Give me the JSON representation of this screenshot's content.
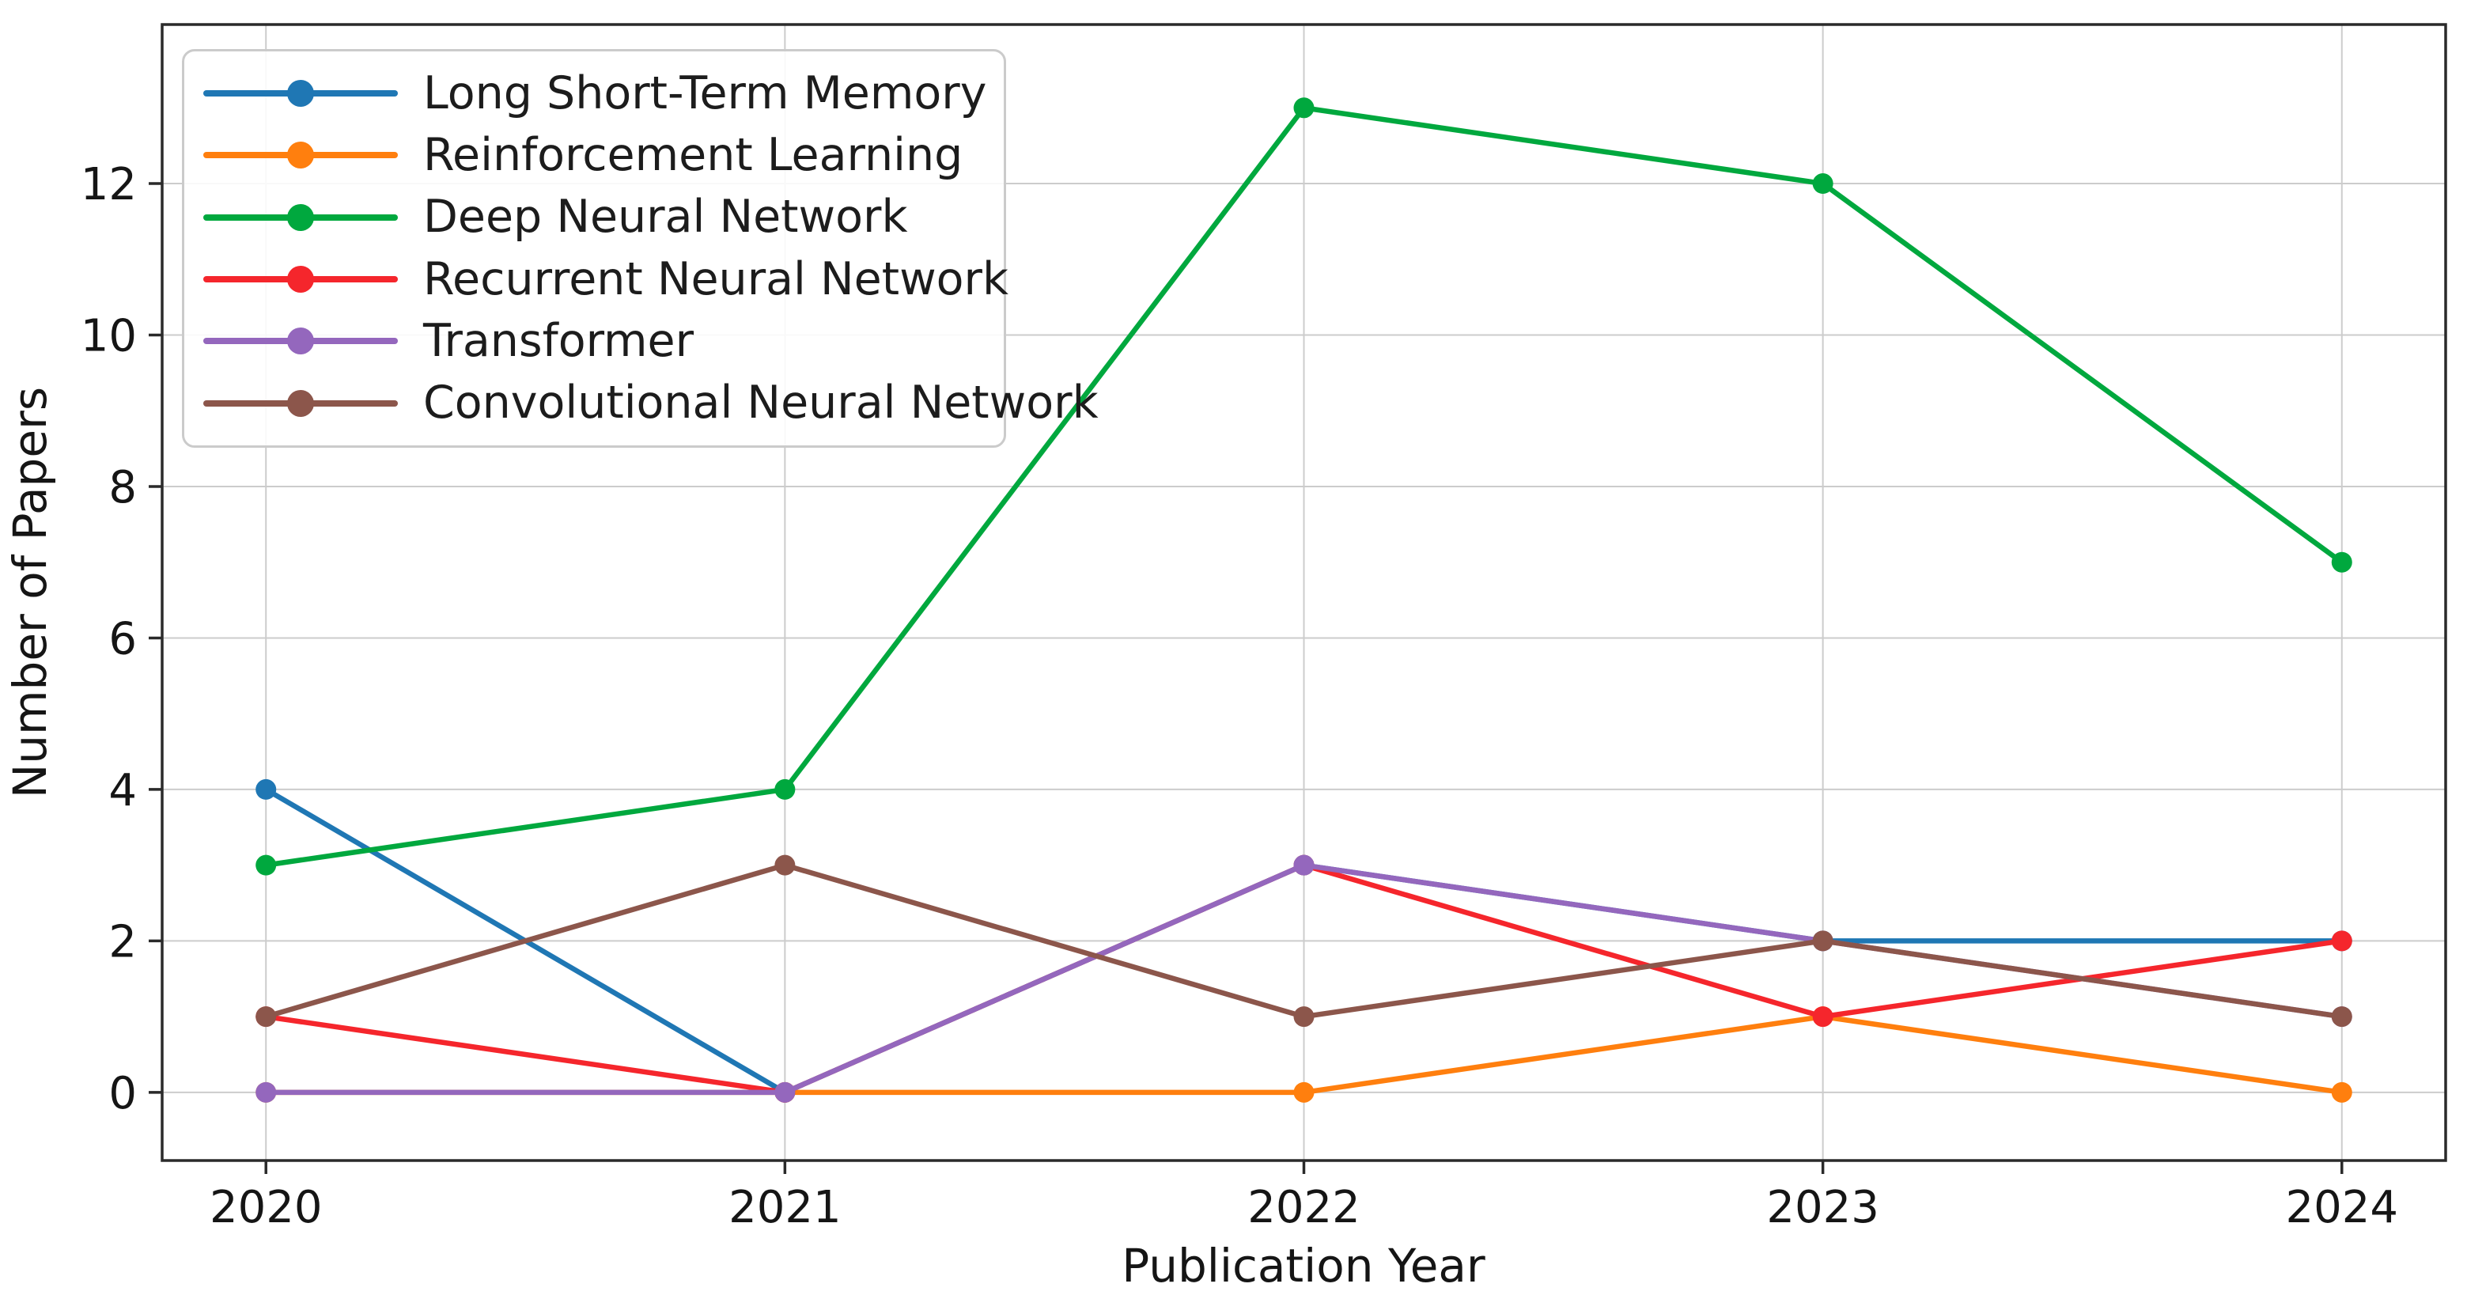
{
  "figure": {
    "background": "#ffffff",
    "text_color": "#151515",
    "grid_color": "#cccccc",
    "spine_color": "#2a2a2a"
  },
  "chart_data": {
    "type": "line",
    "title": "",
    "xlabel": "Publication Year",
    "ylabel": "Number of Papers",
    "x_categories": [
      "2020",
      "2021",
      "2022",
      "2023",
      "2024"
    ],
    "y_ticks": [
      0,
      2,
      4,
      6,
      8,
      10,
      12
    ],
    "ylim": [
      -0.9,
      14.1
    ],
    "grid": true,
    "legend_position": "upper-left",
    "marker": "circle",
    "series": [
      {
        "name": "Long Short-Term Memory",
        "color": "#1f77b4",
        "values": [
          4,
          0,
          3,
          2,
          2
        ]
      },
      {
        "name": "Reinforcement Learning",
        "color": "#ff7f0e",
        "values": [
          0,
          0,
          0,
          1,
          0
        ]
      },
      {
        "name": "Deep Neural Network",
        "color": "#00a83e",
        "values": [
          3,
          4,
          13,
          12,
          7
        ]
      },
      {
        "name": "Recurrent Neural Network",
        "color": "#f5262c",
        "values": [
          1,
          0,
          3,
          1,
          2
        ]
      },
      {
        "name": "Transformer",
        "color": "#9467bd",
        "values": [
          0,
          0,
          3,
          2,
          1
        ]
      },
      {
        "name": "Convolutional Neural Network",
        "color": "#8c564b",
        "values": [
          1,
          3,
          1,
          2,
          1
        ]
      }
    ]
  }
}
